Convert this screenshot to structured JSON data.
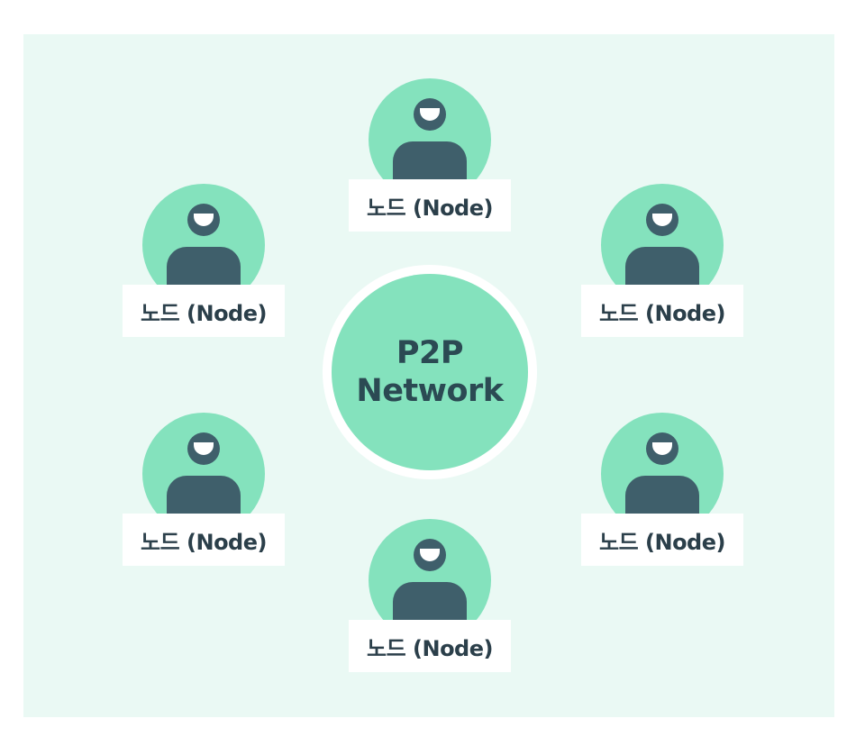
{
  "diagram": {
    "center": {
      "line1": "P2P",
      "line2": "Network"
    },
    "nodes": [
      {
        "label": "노드 (Node)"
      },
      {
        "label": "노드 (Node)"
      },
      {
        "label": "노드 (Node)"
      },
      {
        "label": "노드 (Node)"
      },
      {
        "label": "노드 (Node)"
      },
      {
        "label": "노드 (Node)"
      }
    ],
    "colors": {
      "background": "#eaf9f4",
      "node_fill": "#84e2bd",
      "person": "#3f5f6b",
      "text": "#2b3f4a"
    },
    "icons": [
      "user-avatar-icon"
    ]
  }
}
